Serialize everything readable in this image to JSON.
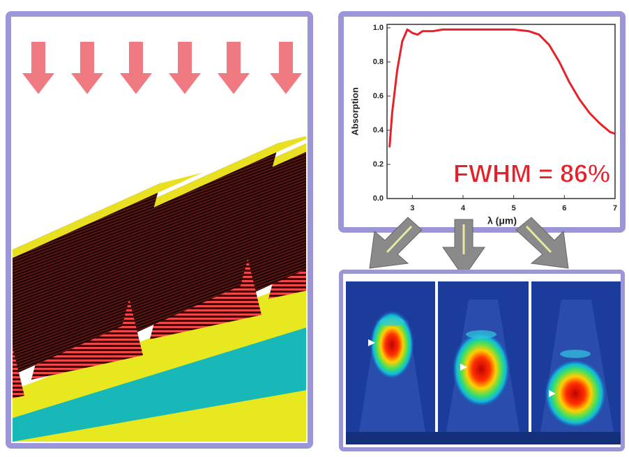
{
  "chart_data": {
    "type": "line",
    "x": [
      2.55,
      2.6,
      2.7,
      2.8,
      2.9,
      3.0,
      3.1,
      3.2,
      3.4,
      3.6,
      4.0,
      4.5,
      5.0,
      5.3,
      5.5,
      5.7,
      5.9,
      6.1,
      6.3,
      6.5,
      6.7,
      6.9,
      7.0
    ],
    "values": [
      0.3,
      0.5,
      0.75,
      0.92,
      0.99,
      0.97,
      0.96,
      0.98,
      0.98,
      0.99,
      0.99,
      0.99,
      0.99,
      0.98,
      0.96,
      0.9,
      0.8,
      0.68,
      0.58,
      0.5,
      0.44,
      0.39,
      0.38
    ],
    "color": "#e8202a",
    "xlabel": "λ (μm)",
    "ylabel": "Absorption",
    "annotation": "FWHM = 86%",
    "xlim": [
      2.5,
      7
    ],
    "ylim": [
      0,
      1.02
    ],
    "xticks": [
      3,
      4,
      5,
      6,
      7
    ],
    "yticks": [
      {
        "value": 0,
        "label": "0.0"
      },
      0.2,
      0.4,
      0.6,
      0.8,
      {
        "value": 1,
        "label": "1.0"
      }
    ]
  }
}
